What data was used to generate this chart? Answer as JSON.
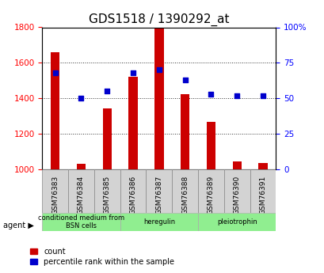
{
  "title": "GDS1518 / 1390292_at",
  "samples": [
    "GSM76383",
    "GSM76384",
    "GSM76385",
    "GSM76386",
    "GSM76387",
    "GSM76388",
    "GSM76389",
    "GSM76390",
    "GSM76391"
  ],
  "counts": [
    1660,
    1030,
    1345,
    1520,
    1795,
    1425,
    1265,
    1045,
    1035
  ],
  "percentiles": [
    68,
    50,
    55,
    68,
    70,
    63,
    53,
    52,
    52
  ],
  "ymin": 1000,
  "ymax": 1800,
  "y_ticks": [
    1000,
    1200,
    1400,
    1600,
    1800
  ],
  "y_right_ticks": [
    0,
    25,
    50,
    75,
    100
  ],
  "bar_color": "#cc0000",
  "dot_color": "#0000cc",
  "bg_color": "#d3d3d3",
  "agent_groups": [
    {
      "label": "conditioned medium from\nBSN cells",
      "start": 0,
      "end": 3,
      "color": "#90ee90"
    },
    {
      "label": "heregulin",
      "start": 3,
      "end": 6,
      "color": "#90ee90"
    },
    {
      "label": "pleiotrophin",
      "start": 6,
      "end": 9,
      "color": "#90ee90"
    }
  ],
  "legend_count_label": "count",
  "legend_pct_label": "percentile rank within the sample",
  "grid_color": "#333333",
  "title_fontsize": 11,
  "tick_fontsize": 7.5,
  "bar_width": 0.35
}
